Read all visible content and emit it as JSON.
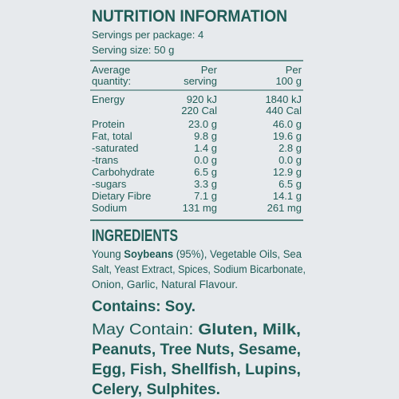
{
  "title": "NUTRITION INFORMATION",
  "servings_per_package": "Servings per package: 4",
  "serving_size": "Serving size: 50 g",
  "table": {
    "header": [
      [
        "Average",
        "quantity:"
      ],
      [
        "Per",
        "serving"
      ],
      [
        "Per",
        "100 g"
      ]
    ],
    "rows": [
      [
        "Energy",
        "920 kJ",
        "1840 kJ"
      ],
      [
        null,
        "220 Cal",
        "440 Cal"
      ],
      [
        "Protein",
        "23.0 g",
        "46.0 g"
      ],
      [
        "Fat, total",
        "9.8 g",
        "19.6 g"
      ],
      [
        "-saturated",
        "1.4 g",
        "2.8 g"
      ],
      [
        "-trans",
        "0.0 g",
        "0.0 g"
      ],
      [
        "Carbohydrate",
        "6.5 g",
        "12.9 g"
      ],
      [
        "-sugars",
        "3.3 g",
        "6.5 g"
      ],
      [
        "Dietary Fibre",
        "7.1 g",
        "14.1 g"
      ],
      [
        "Sodium",
        "131 mg",
        "261 mg"
      ]
    ]
  },
  "ingredients": {
    "heading": "INGREDIENTS",
    "lines": [
      [
        {
          "text": "Young "
        },
        {
          "text": "Soybeans",
          "bold": true
        },
        {
          "text": " (95%), Vegetable Oils, Sea"
        }
      ],
      [
        {
          "text": "Salt, Yeast Extract, Spices, Sodium Bicarbonate,"
        }
      ],
      [
        {
          "text": "Onion, Garlic, Natural Flavour."
        }
      ]
    ]
  },
  "contains": "Contains: Soy.",
  "may_contain": {
    "lines": [
      [
        {
          "text": "May Contain: "
        },
        {
          "text": "Gluten, Milk,",
          "bold": true
        }
      ],
      [
        {
          "text": "Peanuts, Tree Nuts, Sesame,",
          "bold": true
        }
      ],
      [
        {
          "text": "Egg, Fish, Shellfish, Lupins,",
          "bold": true
        }
      ],
      [
        {
          "text": "Celery, Sulphites.",
          "bold": true
        }
      ]
    ]
  }
}
